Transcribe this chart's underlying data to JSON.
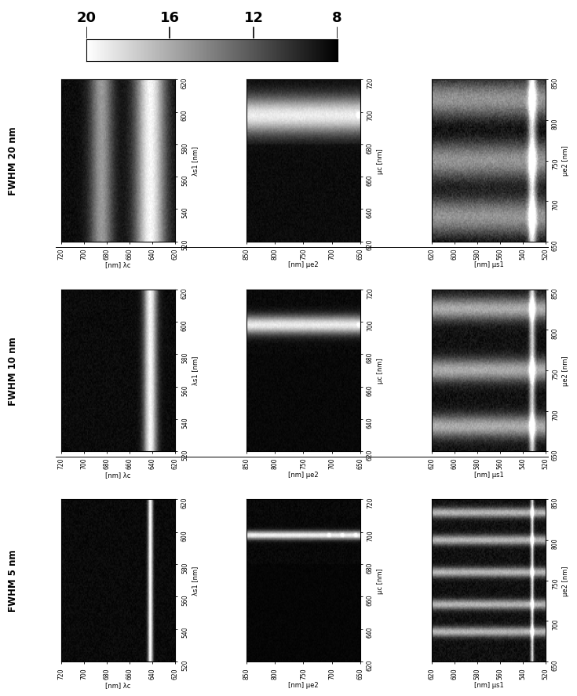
{
  "colorbar_ticks": [
    20,
    16,
    12,
    8
  ],
  "colorbar_range": [
    6,
    22
  ],
  "row_labels": [
    "FWHM 20 nm",
    "FWHM 10 nm",
    "FWHM 5 nm"
  ],
  "col1_xlabel": "[nm] λc",
  "col1_ylabel_right": "λs1 [nm]",
  "col2_xlabel": "[nm] μe2",
  "col2_ylabel_right": "μc [nm]",
  "col3_xlabel": "[nm] μs1",
  "col3_ylabel_right": "μe2 [nm]",
  "col1_xticks": [
    720,
    700,
    680,
    660,
    640,
    620
  ],
  "col1_yticks": [
    520,
    540,
    560,
    580,
    600,
    620
  ],
  "col2_xticks": [
    850,
    800,
    750,
    700,
    650
  ],
  "col2_yticks": [
    620,
    640,
    660,
    680,
    700,
    720
  ],
  "col3_xticks": [
    620,
    600,
    580,
    560,
    540,
    520
  ],
  "col3_yticks": [
    650,
    700,
    750,
    800,
    850
  ],
  "background_color": "#ffffff"
}
